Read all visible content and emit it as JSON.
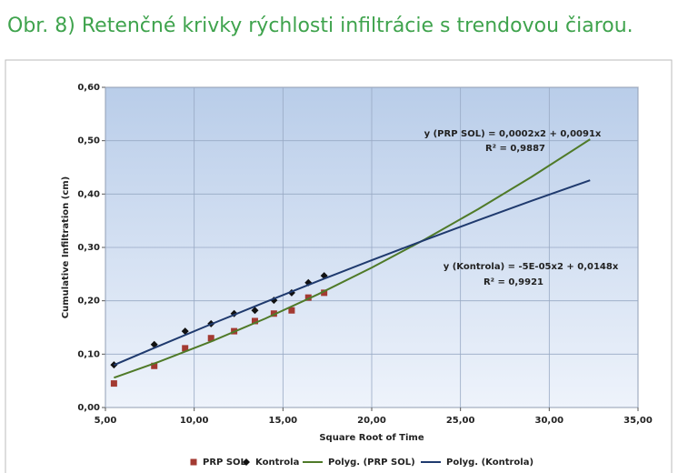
{
  "chart_data": {
    "type": "scatter",
    "title": "Obr. 8) Retenčné krivky rýchlosti infiltrácie s trendovou čiarou.",
    "x_label": "Square Root of Time",
    "y_label": "Cumulative Infiltration (cm)",
    "xlim": [
      5,
      35
    ],
    "ylim": [
      0,
      0.6
    ],
    "xticks": [
      {
        "value": 5,
        "label": "5,00"
      },
      {
        "value": 10,
        "label": "10,00"
      },
      {
        "value": 15,
        "label": "15,00"
      },
      {
        "value": 20,
        "label": "20,00"
      },
      {
        "value": 25,
        "label": "25,00"
      },
      {
        "value": 30,
        "label": "30,00"
      },
      {
        "value": 35,
        "label": "35,00"
      }
    ],
    "yticks": [
      {
        "value": 0,
        "label": "0,00"
      },
      {
        "value": 0.1,
        "label": "0,10"
      },
      {
        "value": 0.2,
        "label": "0,20"
      },
      {
        "value": 0.3,
        "label": "0,30"
      },
      {
        "value": 0.4,
        "label": "0,40"
      },
      {
        "value": 0.5,
        "label": "0,50"
      },
      {
        "value": 0.6,
        "label": "0,60"
      }
    ],
    "grid": true,
    "legend": "bottom",
    "series": [
      {
        "name": "PRP SOL",
        "color": "#a33a32",
        "marker": "square",
        "x": [
          5.48,
          7.75,
          9.49,
          10.95,
          12.25,
          13.42,
          14.49,
          15.49,
          16.43,
          17.32
        ],
        "values": [
          0.045,
          0.078,
          0.111,
          0.13,
          0.143,
          0.162,
          0.176,
          0.182,
          0.206,
          0.215
        ]
      },
      {
        "name": "Kontrola",
        "color": "#111111",
        "marker": "diamond",
        "x": [
          5.48,
          7.75,
          9.49,
          10.95,
          12.25,
          13.42,
          14.49,
          15.49,
          16.43,
          17.32
        ],
        "values": [
          0.08,
          0.118,
          0.143,
          0.157,
          0.176,
          0.182,
          0.201,
          0.215,
          0.234,
          0.247
        ]
      },
      {
        "name": "Polyg. (PRP SOL)",
        "color": "#4f7a28",
        "marker": "line",
        "x": [
          5.48,
          8,
          11,
          14,
          17,
          20,
          23,
          26,
          29,
          32.3
        ],
        "values": [
          0.0559,
          0.0856,
          0.1243,
          0.1666,
          0.2125,
          0.262,
          0.3151,
          0.3718,
          0.4321,
          0.5026
        ]
      },
      {
        "name": "Polyg. (Kontrola)",
        "color": "#1f3a6e",
        "marker": "line",
        "x": [
          5.48,
          8,
          11,
          14,
          17,
          20,
          23,
          26,
          29,
          32.3
        ],
        "values": [
          0.0796,
          0.1152,
          0.1568,
          0.1974,
          0.2372,
          0.276,
          0.314,
          0.351,
          0.3872,
          0.4259
        ]
      }
    ],
    "annotations": [
      "y (PRP SOL) = 0,0002x2 + 0,0091x",
      "R² = 0,9887",
      "y (Kontrola) = -5E-05x2 + 0,0148x",
      "R² = 0,9921"
    ]
  }
}
